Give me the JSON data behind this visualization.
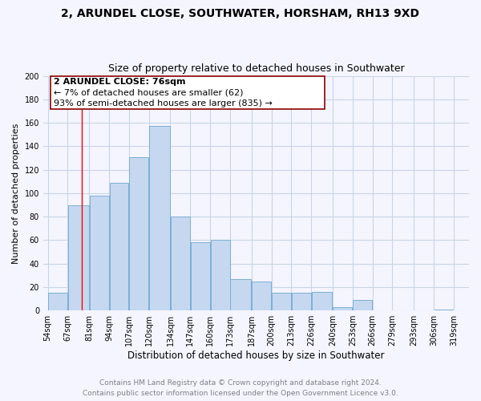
{
  "title": "2, ARUNDEL CLOSE, SOUTHWATER, HORSHAM, RH13 9XD",
  "subtitle": "Size of property relative to detached houses in Southwater",
  "xlabel": "Distribution of detached houses by size in Southwater",
  "ylabel": "Number of detached properties",
  "bar_color": "#c5d8f0",
  "bar_edge_color": "#7bafd4",
  "bar_left_edges": [
    54,
    67,
    81,
    94,
    107,
    120,
    134,
    147,
    160,
    173,
    187,
    200,
    213,
    226,
    240,
    253,
    266,
    279,
    293,
    306
  ],
  "bar_widths": [
    13,
    14,
    13,
    13,
    13,
    14,
    13,
    13,
    13,
    14,
    13,
    13,
    13,
    14,
    13,
    13,
    13,
    14,
    13,
    13
  ],
  "bar_heights": [
    15,
    90,
    98,
    109,
    131,
    157,
    80,
    58,
    60,
    27,
    25,
    15,
    15,
    16,
    3,
    9,
    0,
    0,
    0,
    1
  ],
  "x_tick_labels": [
    "54sqm",
    "67sqm",
    "81sqm",
    "94sqm",
    "107sqm",
    "120sqm",
    "134sqm",
    "147sqm",
    "160sqm",
    "173sqm",
    "187sqm",
    "200sqm",
    "213sqm",
    "226sqm",
    "240sqm",
    "253sqm",
    "266sqm",
    "279sqm",
    "293sqm",
    "306sqm",
    "319sqm"
  ],
  "x_tick_positions": [
    54,
    67,
    81,
    94,
    107,
    120,
    134,
    147,
    160,
    173,
    187,
    200,
    213,
    226,
    240,
    253,
    266,
    279,
    293,
    306,
    319
  ],
  "ylim": [
    0,
    200
  ],
  "yticks": [
    0,
    20,
    40,
    60,
    80,
    100,
    120,
    140,
    160,
    180,
    200
  ],
  "xlim_min": 51,
  "xlim_max": 329,
  "property_line_x": 76,
  "annotation_title": "2 ARUNDEL CLOSE: 76sqm",
  "annotation_line1": "← 7% of detached houses are smaller (62)",
  "annotation_line2": "93% of semi-detached houses are larger (835) →",
  "footer_line1": "Contains HM Land Registry data © Crown copyright and database right 2024.",
  "footer_line2": "Contains public sector information licensed under the Open Government Licence v3.0.",
  "background_color": "#f5f5ff",
  "grid_color": "#c8d4e8",
  "title_fontsize": 10,
  "subtitle_fontsize": 9,
  "xlabel_fontsize": 8.5,
  "ylabel_fontsize": 8,
  "tick_fontsize": 7,
  "footer_fontsize": 6.5,
  "annotation_fontsize": 8
}
